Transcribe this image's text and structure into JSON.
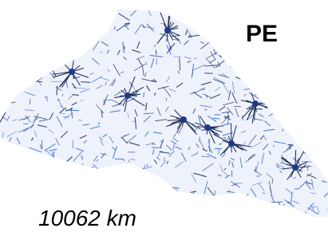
{
  "label": "PE",
  "length": "10062 km"
}
